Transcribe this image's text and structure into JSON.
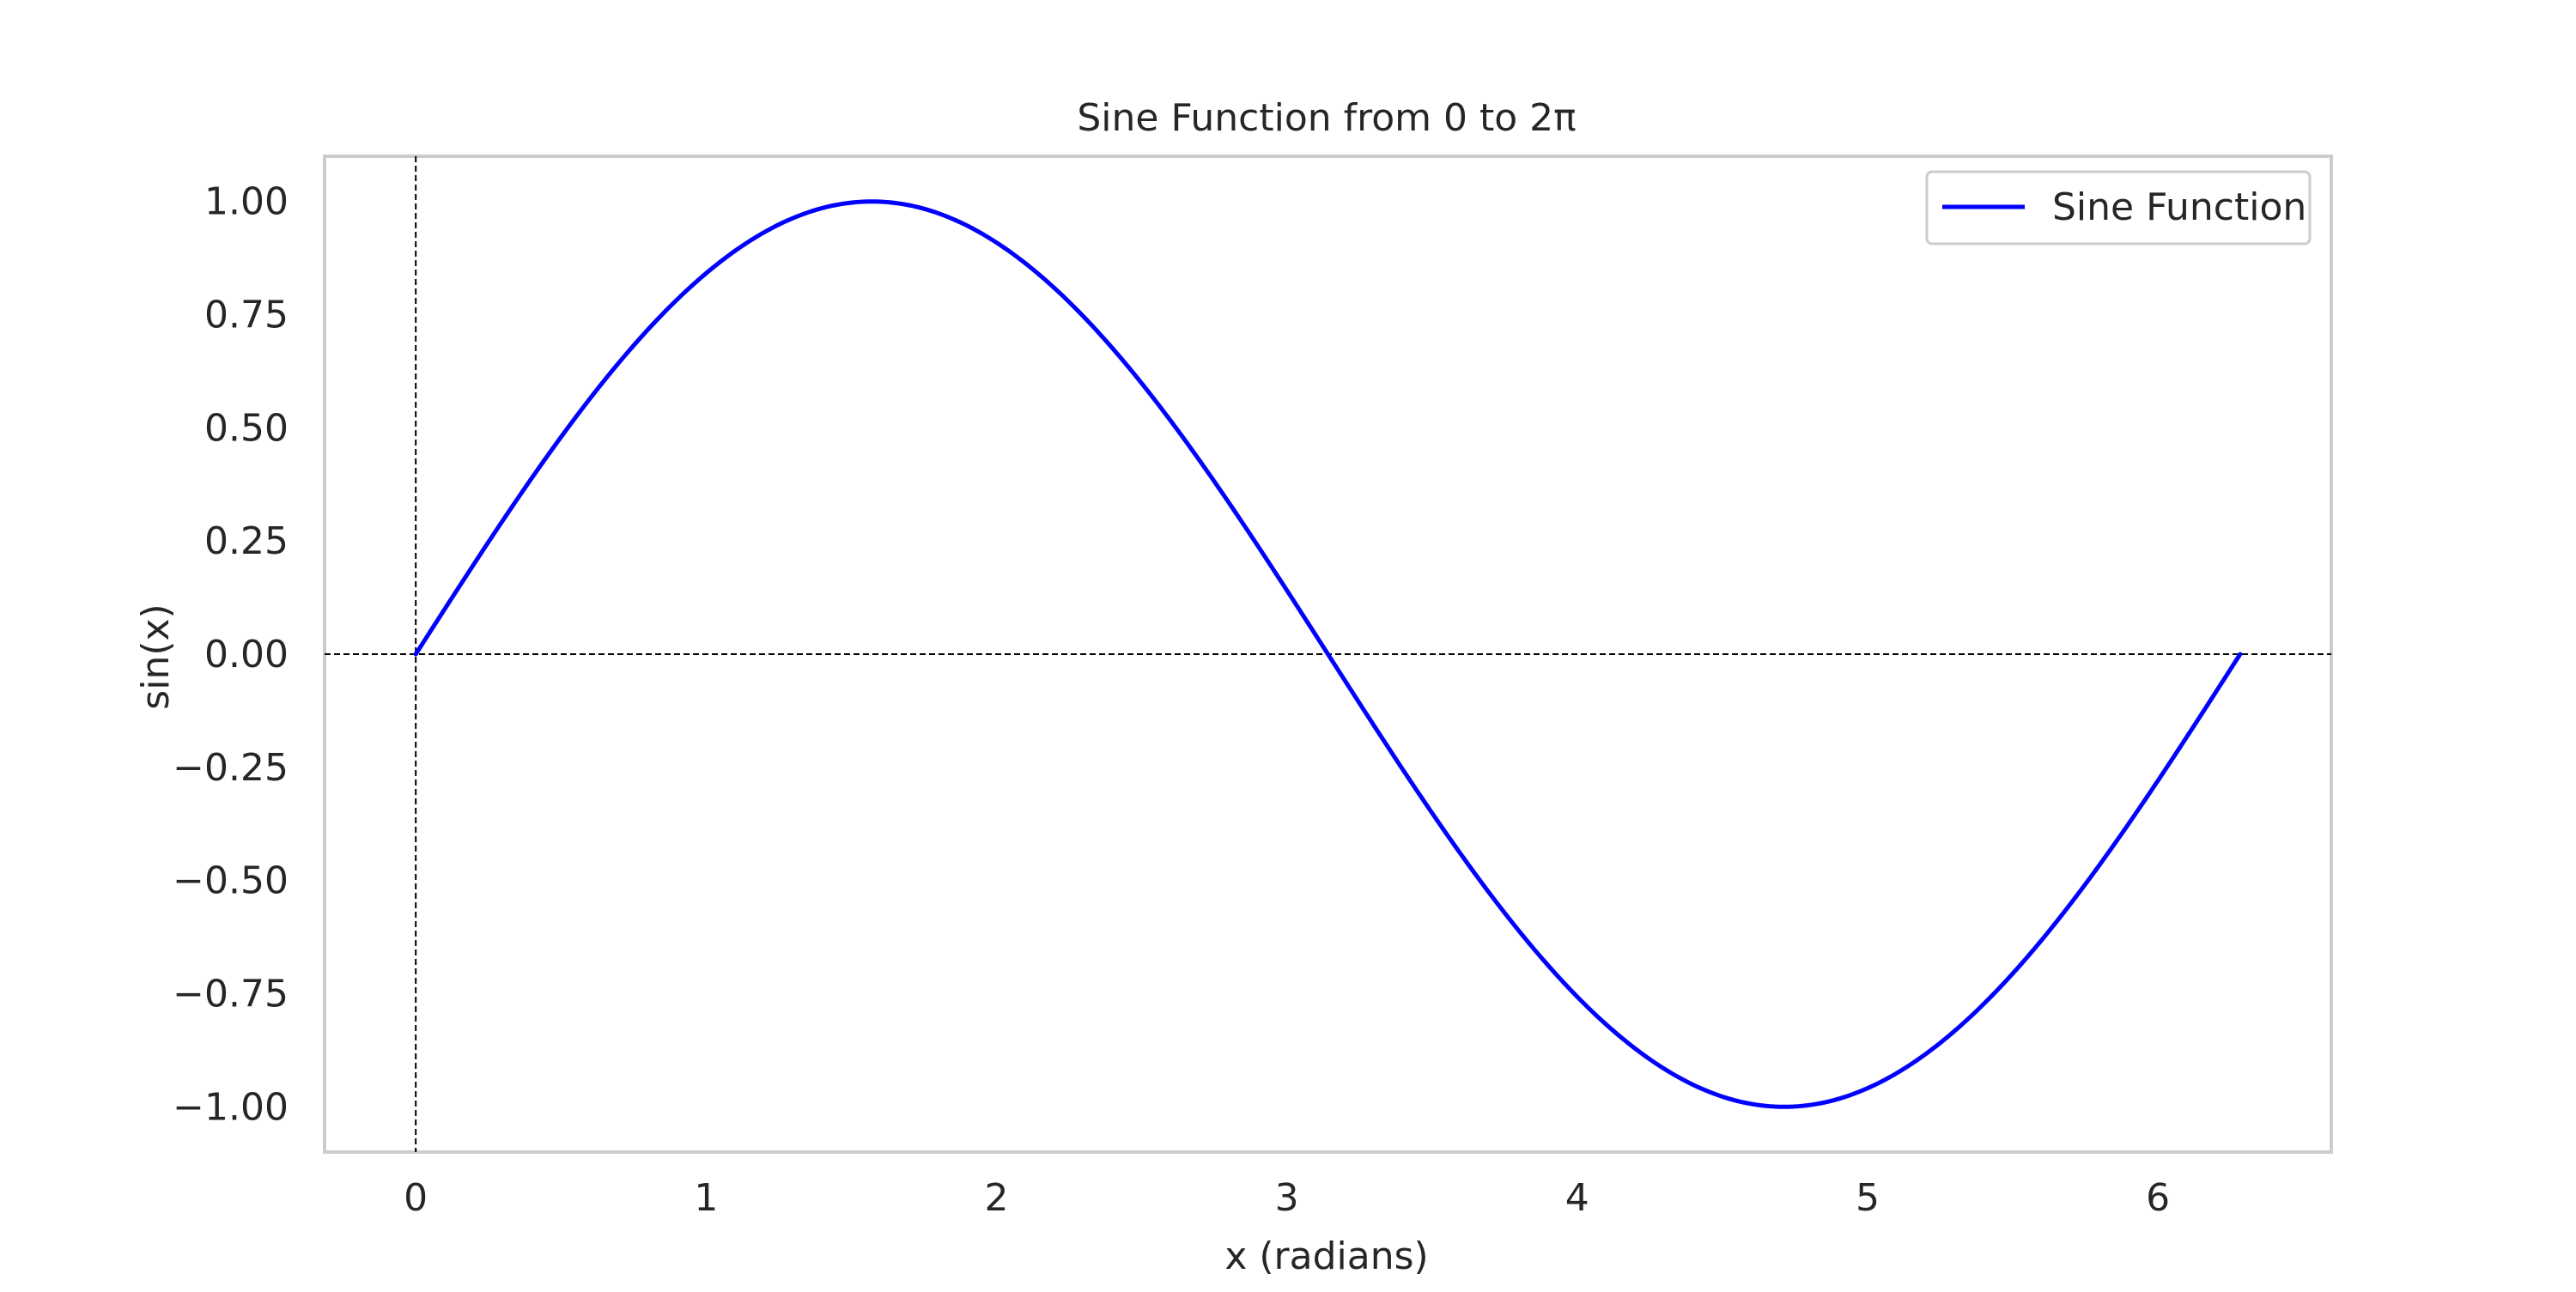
{
  "chart_data": {
    "type": "line",
    "title": "Sine Function from 0 to 2π",
    "xlabel": "x (radians)",
    "ylabel": "sin(x)",
    "xlim": [
      -0.314,
      6.597
    ],
    "ylim": [
      -1.1,
      1.1
    ],
    "x_ticks": [
      0,
      1,
      2,
      3,
      4,
      5,
      6
    ],
    "x_tick_labels": [
      "0",
      "1",
      "2",
      "3",
      "4",
      "5",
      "6"
    ],
    "y_ticks": [
      1.0,
      0.75,
      0.5,
      0.25,
      0.0,
      -0.25,
      -0.5,
      -0.75,
      -1.0
    ],
    "y_tick_labels": [
      "1.00",
      "0.75",
      "0.50",
      "0.25",
      "0.00",
      "−0.25",
      "−0.50",
      "−0.75",
      "−1.00"
    ],
    "grid": false,
    "legend_position": "top-right",
    "reference_lines": [
      {
        "orientation": "horizontal",
        "value": 0,
        "style": "dashed",
        "color": "#000000"
      },
      {
        "orientation": "vertical",
        "value": 0,
        "style": "dashed",
        "color": "#000000"
      }
    ],
    "series": [
      {
        "name": "Sine Function",
        "color": "#0000ff",
        "function": "sin",
        "x_range": [
          0,
          6.283185307
        ],
        "x": [
          0,
          0.5,
          1.0,
          1.5708,
          2.0,
          2.5,
          3.0,
          3.1416,
          3.5,
          4.0,
          4.5,
          4.7124,
          5.0,
          5.5,
          6.0,
          6.2832
        ],
        "y": [
          0,
          0.479,
          0.841,
          1.0,
          0.909,
          0.598,
          0.141,
          0.0,
          -0.351,
          -0.757,
          -0.978,
          -1.0,
          -0.959,
          -0.706,
          -0.279,
          0.0
        ]
      }
    ]
  },
  "colors": {
    "frame": "#cccccc",
    "text": "#262626",
    "series": "#0000ff"
  }
}
